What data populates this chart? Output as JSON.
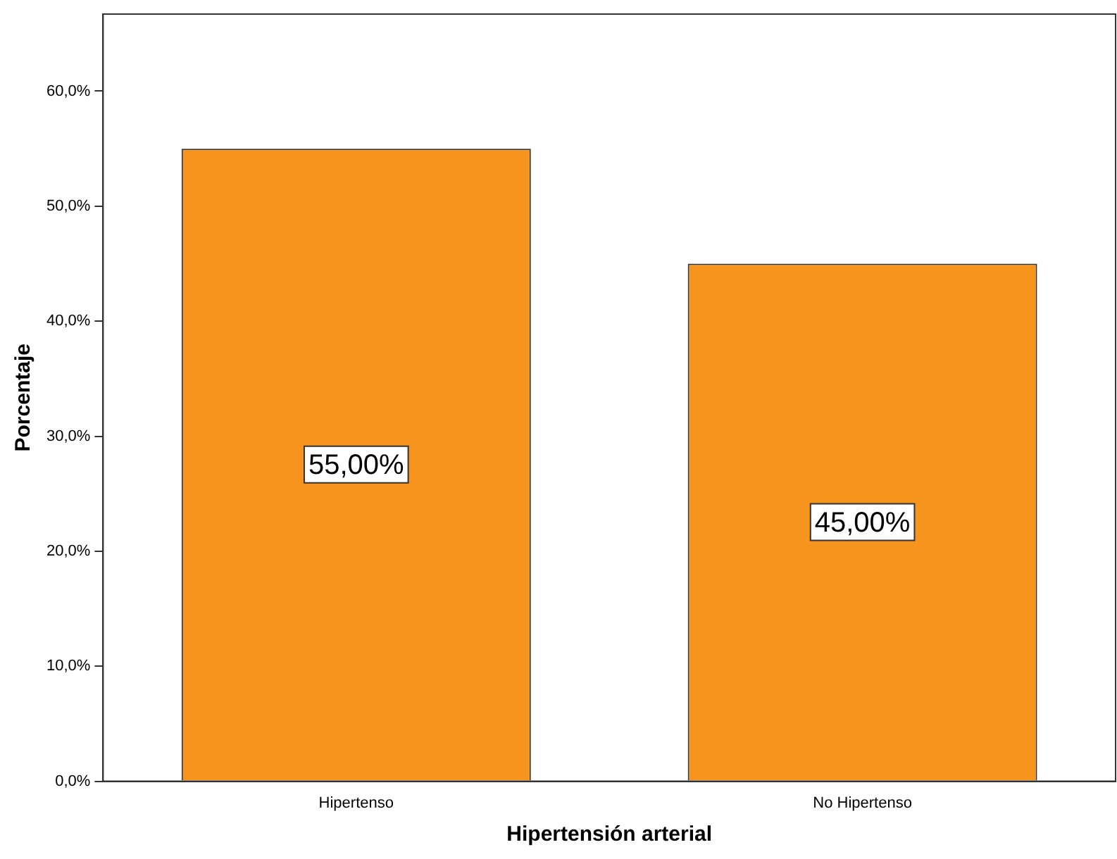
{
  "chart_data": {
    "type": "bar",
    "xlabel": "Hipertensión arterial",
    "ylabel": "Porcentaje",
    "categories": [
      "Hipertenso",
      "No Hipertenso"
    ],
    "values": [
      55,
      45
    ],
    "color": "#f7941d",
    "value_labels": [
      "55,00%",
      "45,00%"
    ],
    "ylim": [
      0,
      66.7
    ],
    "yticks": [
      {
        "value": 0,
        "label": "0,0%"
      },
      {
        "value": 10,
        "label": "10,0%"
      },
      {
        "value": 20,
        "label": "20,0%"
      },
      {
        "value": 30,
        "label": "30,0%"
      },
      {
        "value": 40,
        "label": "40,0%"
      },
      {
        "value": 50,
        "label": "50,0%"
      },
      {
        "value": 60,
        "label": "60,0%"
      }
    ],
    "grid": false,
    "legend": false
  }
}
